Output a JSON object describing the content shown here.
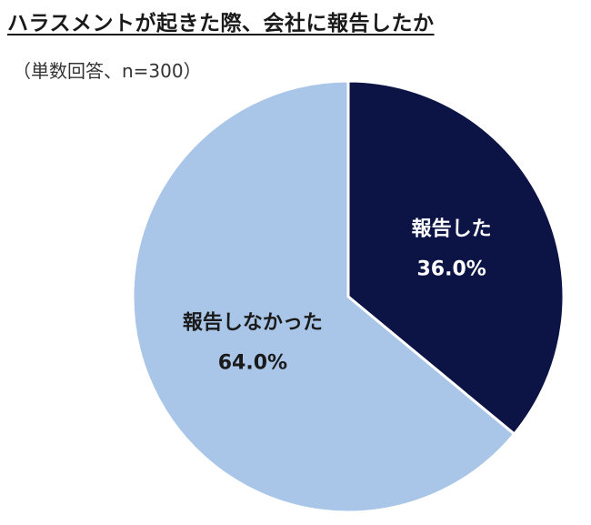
{
  "chart_data": {
    "type": "pie",
    "title": "ハラスメントが起きた際、会社に報告したか",
    "subtitle": "（単数回答、n=300）",
    "slices": [
      {
        "label": "報告した",
        "value": 36.0,
        "value_label": "36.0%",
        "color": "#0c1445",
        "text_color": "#ffffff"
      },
      {
        "label": "報告しなかった",
        "value": 64.0,
        "value_label": "64.0%",
        "color": "#a9c6e8",
        "text_color": "#1a1a1a"
      }
    ],
    "start_angle": "12 o'clock",
    "direction": "clockwise"
  }
}
